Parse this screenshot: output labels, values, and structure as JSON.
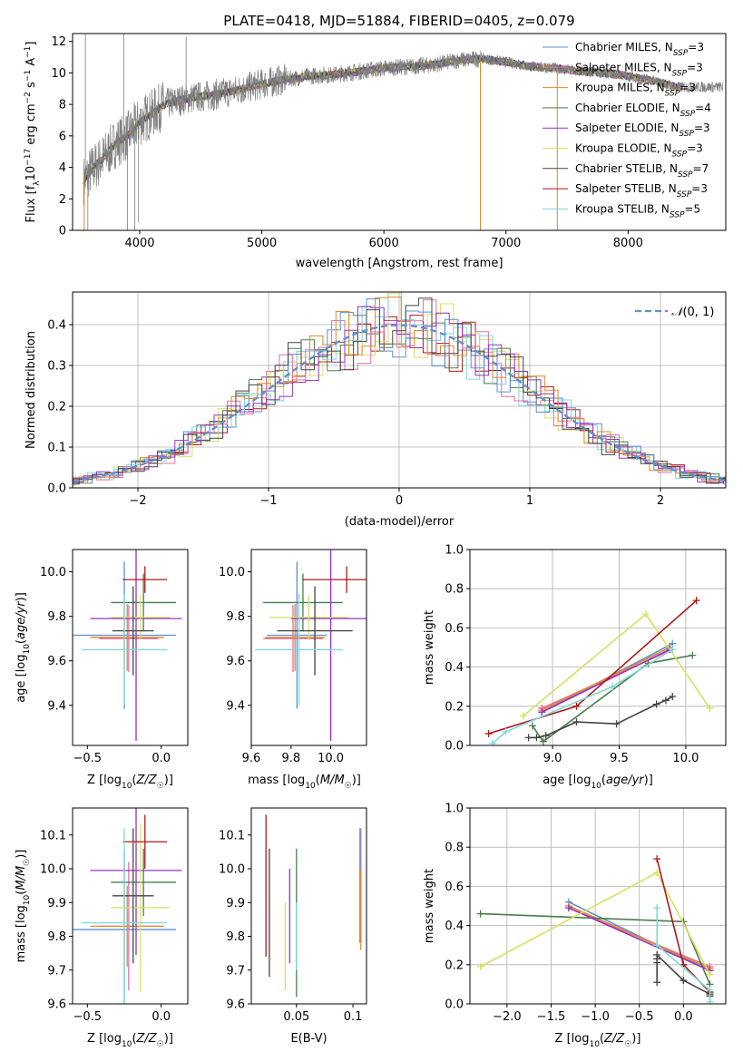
{
  "figure_title": "PLATE=0418, MJD=51884, FIBERID=0405, z=0.079",
  "series_names": [
    "Chabrier MILES, N_SSP=3",
    "Salpeter MILES, N_SSP=3",
    "Kroupa MILES, N_SSP=3",
    "Chabrier ELODIE, N_SSP=4",
    "Salpeter ELODIE, N_SSP=3",
    "Kroupa ELODIE, N_SSP=3",
    "Chabrier STELIB, N_SSP=7",
    "Salpeter STELIB, N_SSP=3",
    "Kroupa STELIB, N_SSP=5"
  ],
  "colors": [
    "#5b8fd6",
    "#e36fa7",
    "#e0892a",
    "#4b7d4b",
    "#9b30c0",
    "#d8e060",
    "#444444",
    "#b01818",
    "#7fd8da"
  ],
  "chart_data": [
    {
      "id": "spectrum",
      "type": "line",
      "title": "PLATE=0418, MJD=51884, FIBERID=0405, z=0.079",
      "xlabel": "wavelength [Angstrom, rest frame]",
      "ylabel": "Flux [f_λ10^-17 erg cm^-2 s^-1 A^-1]",
      "xlim": [
        3450,
        8800
      ],
      "ylim": [
        0,
        12.5
      ],
      "xticks": [
        4000,
        5000,
        6000,
        7000,
        8000
      ],
      "yticks": [
        0,
        2,
        4,
        6,
        8,
        10,
        12
      ],
      "x": [
        3550,
        3600,
        3700,
        3800,
        3900,
        4000,
        4100,
        4200,
        4400,
        4600,
        4800,
        5000,
        5200,
        5400,
        5600,
        5800,
        6000,
        6200,
        6400,
        6600,
        6800,
        7000,
        7200,
        7400,
        7600,
        7800,
        8000,
        8200,
        8400
      ],
      "continuum": [
        3.2,
        3.8,
        4.6,
        5.5,
        6.0,
        6.9,
        7.4,
        8.0,
        8.4,
        8.6,
        8.9,
        9.3,
        9.6,
        9.8,
        9.9,
        10.1,
        10.3,
        10.4,
        10.5,
        10.8,
        10.9,
        10.7,
        10.4,
        10.3,
        10.1,
        10.0,
        9.8,
        9.5,
        9.1
      ],
      "legend": "upper right"
    },
    {
      "id": "residuals",
      "type": "histogram",
      "xlabel": "(data-model)/error",
      "ylabel": "Normed distribution",
      "xlim": [
        -2.5,
        2.5
      ],
      "ylim": [
        0,
        0.48
      ],
      "xticks": [
        -2,
        -1,
        0,
        1,
        2
      ],
      "yticks": [
        0.0,
        0.1,
        0.2,
        0.3,
        0.4
      ],
      "reference_label": "N(0,1)",
      "bin_width": 0.1,
      "grid": true,
      "legend": "upper right"
    },
    {
      "id": "Z-age",
      "type": "scatter-errorbars",
      "xlabel": "Z [log10(Z/Z☉)]",
      "ylabel": "age [log10(age/yr)]",
      "xlim": [
        -0.6,
        0.18
      ],
      "ylim": [
        9.22,
        10.1
      ],
      "xticks": [
        -0.5,
        0.0
      ],
      "yticks": [
        9.4,
        9.6,
        9.8,
        10.0
      ],
      "points": [
        {
          "x": -0.25,
          "xerr": 0.35,
          "y": 9.715,
          "yerr": 0.33
        },
        {
          "x": -0.22,
          "xerr": 0.2,
          "y": 9.7,
          "yerr": 0.15
        },
        {
          "x": -0.23,
          "xerr": 0.25,
          "y": 9.705,
          "yerr": 0.15
        },
        {
          "x": -0.12,
          "xerr": 0.22,
          "y": 9.862,
          "yerr": 0.13
        },
        {
          "x": -0.17,
          "xerr": 0.31,
          "y": 9.79,
          "yerr": 0.55
        },
        {
          "x": -0.14,
          "xerr": 0.2,
          "y": 9.795,
          "yerr": 0.1
        },
        {
          "x": -0.19,
          "xerr": 0.14,
          "y": 9.735,
          "yerr": 0.2
        },
        {
          "x": -0.11,
          "xerr": 0.15,
          "y": 9.965,
          "yerr": 0.06
        },
        {
          "x": -0.25,
          "xerr": 0.29,
          "y": 9.65,
          "yerr": 0.25
        }
      ]
    },
    {
      "id": "mass-age",
      "type": "scatter-errorbars",
      "xlabel": "mass [log10(M/M☉)]",
      "ylabel": "",
      "xlim": [
        9.6,
        10.18
      ],
      "ylim": [
        9.22,
        10.1
      ],
      "xticks": [
        9.6,
        9.8,
        10.0
      ],
      "yticks": [
        9.4,
        9.6,
        9.8,
        10.0
      ],
      "points": [
        {
          "x": 9.83,
          "xerr": 0.15,
          "y": 9.715,
          "yerr": 0.33
        },
        {
          "x": 9.81,
          "xerr": 0.15,
          "y": 9.7,
          "yerr": 0.15
        },
        {
          "x": 9.82,
          "xerr": 0.15,
          "y": 9.705,
          "yerr": 0.15
        },
        {
          "x": 9.86,
          "xerr": 0.2,
          "y": 9.862,
          "yerr": 0.13
        },
        {
          "x": 10.0,
          "xerr": 0.2,
          "y": 9.79,
          "yerr": 0.55
        },
        {
          "x": 9.89,
          "xerr": 0.2,
          "y": 9.795,
          "yerr": 0.1
        },
        {
          "x": 9.92,
          "xerr": 0.19,
          "y": 9.735,
          "yerr": 0.2
        },
        {
          "x": 10.08,
          "xerr": 0.22,
          "y": 9.965,
          "yerr": 0.06
        },
        {
          "x": 9.84,
          "xerr": 0.22,
          "y": 9.65,
          "yerr": 0.25
        }
      ]
    },
    {
      "id": "age-weight",
      "type": "line",
      "xlabel": "age [log10(age/yr)]",
      "ylabel": "mass weight",
      "xlim": [
        8.38,
        10.3
      ],
      "ylim": [
        0,
        1
      ],
      "xticks": [
        9.0,
        9.5,
        10.0
      ],
      "yticks": [
        0.0,
        0.2,
        0.4,
        0.6,
        0.8,
        1.0
      ],
      "grid": true,
      "series": [
        {
          "x": [
            8.92,
            9.9
          ],
          "y": [
            0.17,
            0.52
          ]
        },
        {
          "x": [
            8.92,
            9.9
          ],
          "y": [
            0.19,
            0.49
          ]
        },
        {
          "x": [
            8.92,
            9.88
          ],
          "y": [
            0.18,
            0.5
          ]
        },
        {
          "x": [
            8.85,
            8.93,
            9.72,
            10.05
          ],
          "y": [
            0.1,
            0.02,
            0.42,
            0.46
          ]
        },
        {
          "x": [
            8.92,
            9.88
          ],
          "y": [
            0.17,
            0.49
          ]
        },
        {
          "x": [
            8.78,
            9.7,
            10.18
          ],
          "y": [
            0.15,
            0.67,
            0.19
          ]
        },
        {
          "x": [
            8.82,
            8.88,
            8.95,
            9.18,
            9.48,
            9.78,
            9.85,
            9.9
          ],
          "y": [
            0.04,
            0.04,
            0.05,
            0.12,
            0.11,
            0.21,
            0.23,
            0.25
          ]
        },
        {
          "x": [
            8.52,
            9.18,
            10.08
          ],
          "y": [
            0.06,
            0.2,
            0.74
          ]
        },
        {
          "x": [
            8.55,
            8.65,
            9.45,
            9.9
          ],
          "y": [
            0.01,
            0.07,
            0.3,
            0.49
          ]
        }
      ]
    },
    {
      "id": "Z-mass",
      "type": "scatter-errorbars",
      "xlabel": "Z [log10(Z/Z☉)]",
      "ylabel": "mass [log10(M/M☉)]",
      "xlim": [
        -0.6,
        0.18
      ],
      "ylim": [
        9.6,
        10.18
      ],
      "xticks": [
        -0.5,
        0.0
      ],
      "yticks": [
        9.6,
        9.7,
        9.8,
        9.9,
        10.0,
        10.1
      ],
      "points": [
        {
          "x": -0.25,
          "xerr": 0.35,
          "y": 9.82,
          "yerr": 0.23
        },
        {
          "x": -0.22,
          "xerr": 0.2,
          "y": 9.83,
          "yerr": 0.19
        },
        {
          "x": -0.23,
          "xerr": 0.25,
          "y": 9.83,
          "yerr": 0.12
        },
        {
          "x": -0.12,
          "xerr": 0.22,
          "y": 9.96,
          "yerr": 0.1
        },
        {
          "x": -0.17,
          "xerr": 0.31,
          "y": 9.995,
          "yerr": 0.25
        },
        {
          "x": -0.14,
          "xerr": 0.2,
          "y": 9.885,
          "yerr": 0.25
        },
        {
          "x": -0.19,
          "xerr": 0.14,
          "y": 9.92,
          "yerr": 0.2
        },
        {
          "x": -0.11,
          "xerr": 0.15,
          "y": 10.08,
          "yerr": 0.08
        },
        {
          "x": -0.25,
          "xerr": 0.29,
          "y": 9.84,
          "yerr": 0.28
        }
      ]
    },
    {
      "id": "ebv-mass",
      "type": "scatter-errorbars",
      "xlabel": "E(B-V)",
      "ylabel": "",
      "xlim": [
        0.01,
        0.112
      ],
      "ylim": [
        9.6,
        10.18
      ],
      "xticks": [
        0.05,
        0.1
      ],
      "yticks": [
        9.6,
        9.7,
        9.8,
        9.9,
        10.0,
        10.1
      ],
      "points": [
        {
          "x": 0.107,
          "xerr": 0,
          "y": 9.95,
          "yerr": 0.17
        },
        {
          "x": 0.106,
          "xerr": 0,
          "y": 9.95,
          "yerr": 0.17
        },
        {
          "x": 0.107,
          "xerr": 0,
          "y": 9.88,
          "yerr": 0.12
        },
        {
          "x": 0.05,
          "xerr": 0,
          "y": 9.84,
          "yerr": 0.22
        },
        {
          "x": 0.044,
          "xerr": 0,
          "y": 9.86,
          "yerr": 0.14
        },
        {
          "x": 0.04,
          "xerr": 0,
          "y": 9.77,
          "yerr": 0.13
        },
        {
          "x": 0.026,
          "xerr": 0,
          "y": 9.87,
          "yerr": 0.19
        },
        {
          "x": 0.023,
          "xerr": 0,
          "y": 9.95,
          "yerr": 0.21
        },
        {
          "x": 0.05,
          "xerr": 0,
          "y": 9.8,
          "yerr": 0.1
        }
      ]
    },
    {
      "id": "Z-weight",
      "type": "line",
      "xlabel": "Z [log10(Z/Z☉)]",
      "ylabel": "mass weight",
      "xlim": [
        -2.42,
        0.48
      ],
      "ylim": [
        0,
        1
      ],
      "xticks": [
        -2.0,
        -1.5,
        -1.0,
        -0.5,
        0.0
      ],
      "yticks": [
        0.0,
        0.2,
        0.4,
        0.6,
        0.8,
        1.0
      ],
      "grid": true,
      "series": [
        {
          "x": [
            -1.3,
            0.3
          ],
          "y": [
            0.52,
            0.17
          ]
        },
        {
          "x": [
            -1.3,
            0.3
          ],
          "y": [
            0.49,
            0.19
          ]
        },
        {
          "x": [
            -1.3,
            0.3
          ],
          "y": [
            0.5,
            0.18
          ]
        },
        {
          "x": [
            -2.3,
            0.0,
            0.3
          ],
          "y": [
            0.46,
            0.42,
            0.1
          ]
        },
        {
          "x": [
            -1.3,
            0.3
          ],
          "y": [
            0.49,
            0.17
          ]
        },
        {
          "x": [
            -2.3,
            -0.3,
            0.3
          ],
          "y": [
            0.19,
            0.67,
            0.15
          ]
        },
        {
          "x": [
            -0.3,
            -0.3,
            -0.3,
            -0.3,
            0.0,
            0.3,
            0.3,
            0.3
          ],
          "y": [
            0.11,
            0.21,
            0.23,
            0.25,
            0.12,
            0.05,
            0.04,
            0.04
          ]
        },
        {
          "x": [
            -0.3,
            0.0,
            0.3
          ],
          "y": [
            0.74,
            0.2,
            0.06
          ]
        },
        {
          "x": [
            -0.3,
            -0.3,
            0.3,
            0.3
          ],
          "y": [
            0.49,
            0.3,
            0.07,
            0.01
          ]
        }
      ]
    }
  ]
}
